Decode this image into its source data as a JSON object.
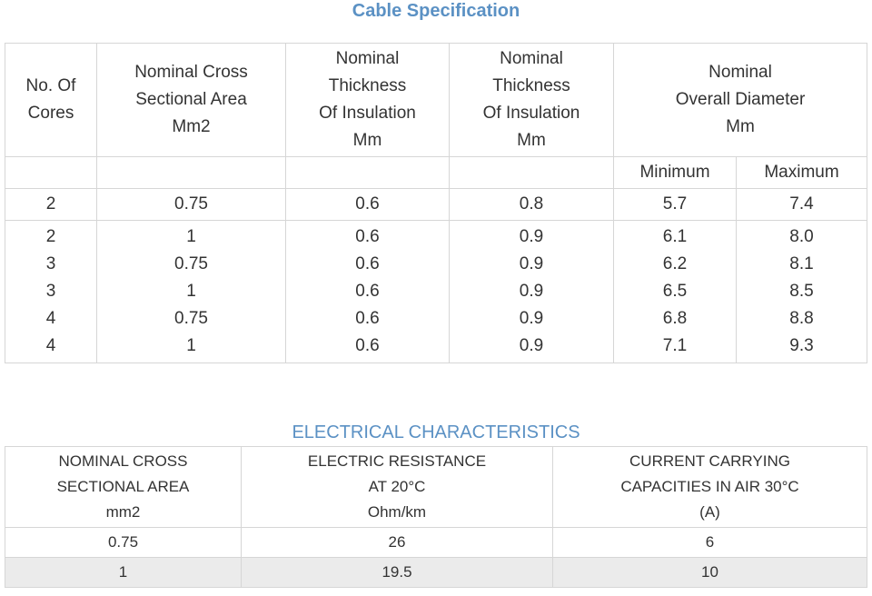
{
  "spec": {
    "title": "Cable Specification",
    "headers": {
      "cores": [
        "No. Of",
        "Cores"
      ],
      "area": [
        "Nominal Cross",
        "Sectional Area",
        "Mm2"
      ],
      "thick_a": [
        "Nominal",
        "Thickness",
        "Of Insulation",
        "Mm"
      ],
      "thick_b": [
        "Nominal",
        "Thickness",
        "Of Insulation",
        "Mm"
      ],
      "diameter": [
        "Nominal",
        "Overall Diameter",
        "Mm"
      ],
      "minimum": "Minimum",
      "maximum": "Maximum"
    },
    "rows": [
      [
        "2",
        "0.75",
        "0.6",
        "0.8",
        "5.7",
        "7.4"
      ],
      [
        "2",
        "1",
        "0.6",
        "0.9",
        "6.1",
        "8.0"
      ],
      [
        "3",
        "0.75",
        "0.6",
        "0.9",
        "6.2",
        "8.1"
      ],
      [
        "3",
        "1",
        "0.6",
        "0.9",
        "6.5",
        "8.5"
      ],
      [
        "4",
        "0.75",
        "0.6",
        "0.9",
        "6.8",
        "8.8"
      ],
      [
        "4",
        "1",
        "0.6",
        "0.9",
        "7.1",
        "9.3"
      ]
    ]
  },
  "electrical": {
    "title": "ELECTRICAL CHARACTERISTICS",
    "headers": {
      "area": [
        "NOMINAL CROSS",
        "SECTIONAL AREA",
        "mm2"
      ],
      "resistance": [
        "ELECTRIC RESISTANCE",
        "AT 20°C",
        "Ohm/km"
      ],
      "current": [
        "CURRENT CARRYING",
        "CAPACITIES IN AIR 30°C",
        "(A)"
      ]
    },
    "rows": [
      [
        "0.75",
        "26",
        "6"
      ],
      [
        "1",
        "19.5",
        "10"
      ]
    ]
  },
  "colors": {
    "heading": "#5b91c4",
    "border": "#d6d6d6",
    "shaded_row": "#ebebeb"
  }
}
